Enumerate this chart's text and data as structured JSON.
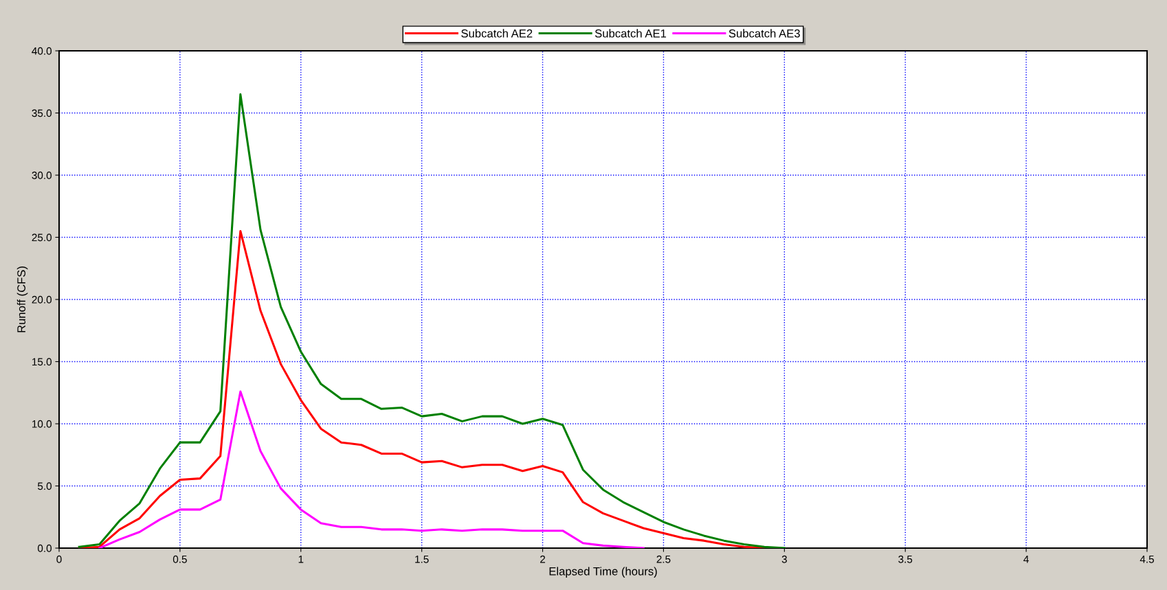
{
  "chart_data": {
    "type": "line",
    "xlabel": "Elapsed Time (hours)",
    "ylabel": "Runoff (CFS)",
    "xlim": [
      0,
      4.5
    ],
    "ylim": [
      0,
      40
    ],
    "xticks": [
      0,
      0.5,
      1,
      1.5,
      2,
      2.5,
      3,
      3.5,
      4,
      4.5
    ],
    "yticks": [
      {
        "value": 0,
        "label": "0.0"
      },
      {
        "value": 5,
        "label": "5.0"
      },
      {
        "value": 10,
        "label": "10.0"
      },
      {
        "value": 15,
        "label": "15.0"
      },
      {
        "value": 20,
        "label": "20.0"
      },
      {
        "value": 25,
        "label": "25.0"
      },
      {
        "value": 30,
        "label": "30.0"
      },
      {
        "value": 35,
        "label": "35.0"
      },
      {
        "value": 40,
        "label": "40.0"
      }
    ],
    "grid": true,
    "legend": "top",
    "marker": "none",
    "line_style": "solid",
    "series": [
      {
        "name": "Subcatch AE2",
        "color": "#ff0000",
        "x": [
          0.083,
          0.167,
          0.25,
          0.333,
          0.417,
          0.5,
          0.583,
          0.667,
          0.75,
          0.833,
          0.917,
          1.0,
          1.083,
          1.167,
          1.25,
          1.333,
          1.417,
          1.5,
          1.583,
          1.667,
          1.75,
          1.833,
          1.917,
          2.0,
          2.083,
          2.167,
          2.25,
          2.333,
          2.417,
          2.5,
          2.583,
          2.667,
          2.75,
          2.833,
          2.917
        ],
        "values": [
          0,
          0.1,
          1.5,
          2.4,
          4.2,
          5.5,
          5.6,
          7.4,
          25.5,
          19.1,
          14.8,
          11.9,
          9.6,
          8.5,
          8.3,
          7.6,
          7.6,
          6.9,
          7.0,
          6.5,
          6.7,
          6.7,
          6.2,
          6.6,
          6.1,
          3.7,
          2.8,
          2.2,
          1.6,
          1.2,
          0.8,
          0.6,
          0.3,
          0.1,
          0
        ]
      },
      {
        "name": "Subcatch AE1",
        "color": "#008000",
        "x": [
          0.083,
          0.167,
          0.25,
          0.333,
          0.417,
          0.5,
          0.583,
          0.667,
          0.75,
          0.833,
          0.917,
          1.0,
          1.083,
          1.167,
          1.25,
          1.333,
          1.417,
          1.5,
          1.583,
          1.667,
          1.75,
          1.833,
          1.917,
          2.0,
          2.083,
          2.167,
          2.25,
          2.333,
          2.417,
          2.5,
          2.583,
          2.667,
          2.75,
          2.833,
          2.917,
          3.0
        ],
        "values": [
          0.1,
          0.3,
          2.2,
          3.6,
          6.4,
          8.5,
          8.5,
          11.0,
          36.5,
          25.6,
          19.4,
          15.8,
          13.2,
          12.0,
          12.0,
          11.2,
          11.3,
          10.6,
          10.8,
          10.2,
          10.6,
          10.6,
          10.0,
          10.4,
          9.9,
          6.3,
          4.7,
          3.7,
          2.9,
          2.1,
          1.5,
          1.0,
          0.6,
          0.3,
          0.1,
          0
        ]
      },
      {
        "name": "Subcatch AE3",
        "color": "#ff00ff",
        "x": [
          0.167,
          0.25,
          0.333,
          0.417,
          0.5,
          0.583,
          0.667,
          0.75,
          0.833,
          0.917,
          1.0,
          1.083,
          1.167,
          1.25,
          1.333,
          1.417,
          1.5,
          1.583,
          1.667,
          1.75,
          1.833,
          1.917,
          2.0,
          2.083,
          2.167,
          2.25,
          2.333,
          2.417
        ],
        "values": [
          0,
          0.7,
          1.3,
          2.3,
          3.1,
          3.1,
          3.9,
          12.6,
          7.8,
          4.8,
          3.1,
          2.0,
          1.7,
          1.7,
          1.5,
          1.5,
          1.4,
          1.5,
          1.4,
          1.5,
          1.5,
          1.4,
          1.4,
          1.4,
          0.4,
          0.2,
          0.1,
          0
        ]
      }
    ]
  }
}
